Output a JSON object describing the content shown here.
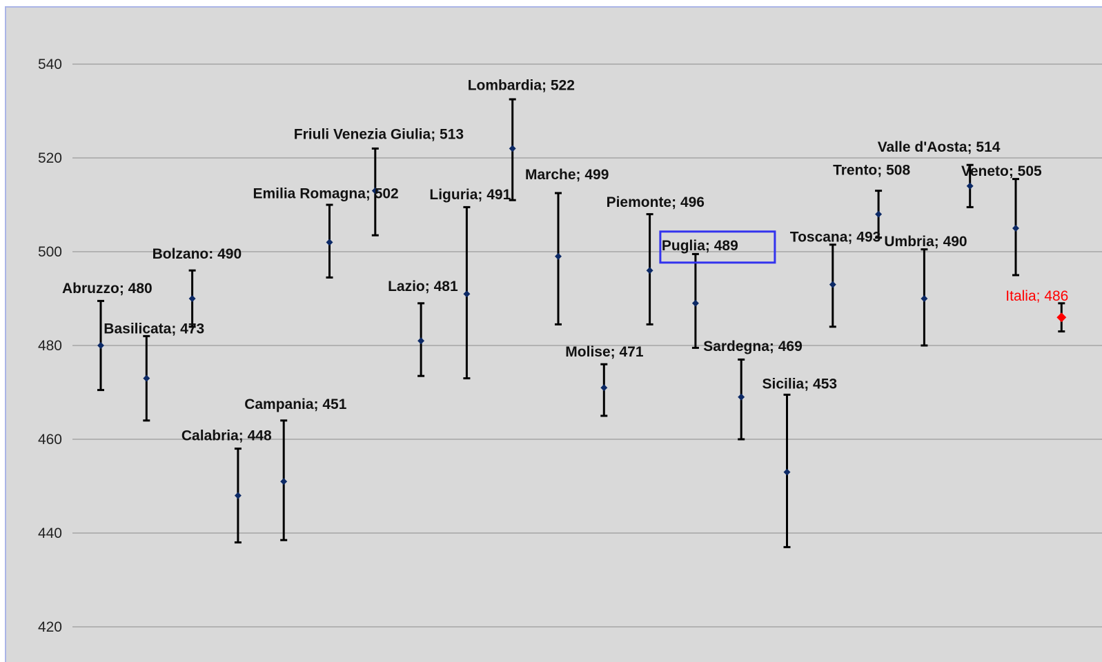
{
  "chart_data": {
    "type": "scatter",
    "title": "",
    "xlabel": "",
    "ylabel": "",
    "ylim": [
      420,
      540
    ],
    "yticks": [
      420,
      440,
      460,
      480,
      500,
      520,
      540
    ],
    "grid": true,
    "legend": "none",
    "colors": {
      "background": "#d9d9d9",
      "frame": "#aab4e6",
      "gridline": "#8c8c8c",
      "marker": "#0d2a66",
      "errorbar": "#000000",
      "highlight": "#ff0000",
      "callout_box": "#3333ee"
    },
    "points": [
      {
        "region": "Abruzzo",
        "value": 480,
        "label": "Abruzzo; 480",
        "low": 470.5,
        "high": 489.5
      },
      {
        "region": "Basilicata",
        "value": 473,
        "label": "Basilicata; 473",
        "low": 464,
        "high": 482
      },
      {
        "region": "Bolzano",
        "value": 490,
        "label": "Bolzano: 490",
        "low": 484,
        "high": 496
      },
      {
        "region": "Calabria",
        "value": 448,
        "label": "Calabria; 448",
        "low": 438,
        "high": 458
      },
      {
        "region": "Campania",
        "value": 451,
        "label": "Campania; 451",
        "low": 438.5,
        "high": 464
      },
      {
        "region": "Emilia Romagna",
        "value": 502,
        "label": "Emilia Romagna; 502",
        "low": 494.5,
        "high": 510
      },
      {
        "region": "Friuli Venezia Giulia",
        "value": 513,
        "label": "Friuli Venezia Giulia; 513",
        "low": 503.5,
        "high": 522
      },
      {
        "region": "Lazio",
        "value": 481,
        "label": "Lazio; 481",
        "low": 473.5,
        "high": 489
      },
      {
        "region": "Liguria",
        "value": 491,
        "label": "Liguria; 491",
        "low": 473,
        "high": 509.5
      },
      {
        "region": "Lombardia",
        "value": 522,
        "label": "Lombardia; 522",
        "low": 511,
        "high": 532.5
      },
      {
        "region": "Marche",
        "value": 499,
        "label": "Marche; 499",
        "low": 484.5,
        "high": 512.5
      },
      {
        "region": "Molise",
        "value": 471,
        "label": "Molise; 471",
        "low": 465,
        "high": 476
      },
      {
        "region": "Piemonte",
        "value": 496,
        "label": "Piemonte; 496",
        "low": 484.5,
        "high": 508
      },
      {
        "region": "Puglia",
        "value": 489,
        "label": "Puglia; 489",
        "low": 479.5,
        "high": 499.5,
        "boxed": true
      },
      {
        "region": "Sardegna",
        "value": 469,
        "label": "Sardegna; 469",
        "low": 460,
        "high": 477
      },
      {
        "region": "Sicilia",
        "value": 453,
        "label": "Sicilia; 453",
        "low": 437,
        "high": 469.5
      },
      {
        "region": "Toscana",
        "value": 493,
        "label": "Toscana; 493",
        "low": 484,
        "high": 501.5
      },
      {
        "region": "Trento",
        "value": 508,
        "label": "Trento; 508",
        "low": 503,
        "high": 513
      },
      {
        "region": "Umbria",
        "value": 490,
        "label": "Umbria; 490",
        "low": 480,
        "high": 500.5
      },
      {
        "region": "Valle d'Aosta",
        "value": 514,
        "label": "Valle d'Aosta; 514",
        "low": 509.5,
        "high": 518.5
      },
      {
        "region": "Veneto",
        "value": 505,
        "label": "Veneto; 505",
        "low": 495,
        "high": 515.5
      },
      {
        "region": "Italia",
        "value": 486,
        "label": "Italia; 486",
        "low": 483,
        "high": 489,
        "highlight": true
      }
    ]
  }
}
